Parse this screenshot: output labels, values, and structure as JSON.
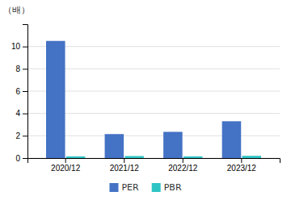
{
  "chart_data": {
    "type": "bar",
    "categories": [
      "2020/12",
      "2021/12",
      "2022/12",
      "2023/12"
    ],
    "series": [
      {
        "name": "PER",
        "color": "#4472C4",
        "values": [
          10.5,
          2.15,
          2.35,
          3.3
        ]
      },
      {
        "name": "PBR",
        "color": "#2EC4C4",
        "values": [
          0.15,
          0.18,
          0.15,
          0.2
        ]
      }
    ],
    "ylabel": "（배）",
    "ylim": [
      0,
      12
    ],
    "yticks": [
      0,
      2,
      4,
      6,
      8,
      10
    ],
    "grid": true,
    "legend": "bottom"
  }
}
